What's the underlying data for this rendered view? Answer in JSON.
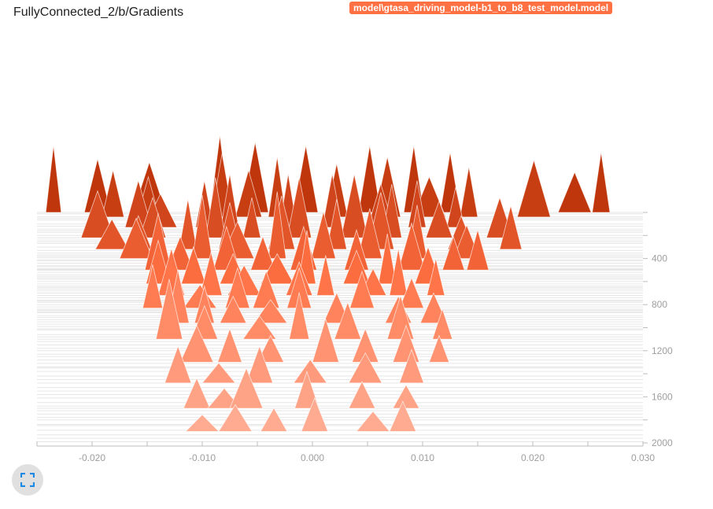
{
  "header": {
    "title": "FullyConnected_2/b/Gradients",
    "run": "model\\gtasa_driving_model-b1_to_b8_test_model.model"
  },
  "controls": {
    "expand_icon": "fullscreen-expand-icon"
  },
  "colors": {
    "run": "#ff7043",
    "back": "#bf360c",
    "front": "#ffab91"
  },
  "chart_data": {
    "type": "histogram",
    "mode": "offset",
    "title": "FullyConnected_2/b/Gradients",
    "xlim": [
      -0.025,
      0.03
    ],
    "x_ticks": [
      -0.02,
      -0.01,
      0.0,
      0.01,
      0.02,
      0.03
    ],
    "x_tick_labels": [
      "-0.020",
      "-0.010",
      "0.000",
      "0.010",
      "0.020",
      "0.030"
    ],
    "ylim": [
      0,
      2000
    ],
    "y_ticks": [
      400,
      800,
      1200,
      1600,
      2000
    ],
    "y_tick_labels": [
      "400",
      "800",
      "1200",
      "1600",
      "2000"
    ],
    "step_lines": [
      0,
      12,
      38,
      52,
      66,
      101,
      120,
      145,
      160,
      175,
      200,
      220,
      240,
      255,
      270,
      300,
      330,
      352,
      368,
      380,
      392,
      410,
      420,
      440,
      462,
      470,
      486,
      495,
      502,
      520,
      540,
      555,
      568,
      580,
      600,
      620,
      640,
      652,
      665,
      680,
      700,
      720,
      740,
      760,
      770,
      780,
      800,
      820,
      840,
      850,
      862,
      870,
      895,
      910,
      930,
      950,
      970,
      990,
      1010,
      1020,
      1060,
      1080,
      1100,
      1120,
      1150,
      1180,
      1200,
      1230,
      1250,
      1280,
      1310,
      1340,
      1350,
      1380,
      1420,
      1450,
      1480,
      1520,
      1550,
      1580,
      1610,
      1650,
      1680,
      1700,
      1720,
      1750,
      1780,
      1800,
      1840,
      1850,
      1890,
      1930,
      1960,
      1990
    ],
    "histograms": [
      {
        "step": 0,
        "peaks": [
          [
            -0.0235,
            0.0007,
            1
          ],
          [
            -0.0195,
            0.0012,
            0.8
          ],
          [
            -0.0148,
            0.0015,
            0.75
          ],
          [
            -0.0084,
            0.0009,
            1.15
          ],
          [
            -0.0052,
            0.0012,
            1.05
          ],
          [
            -0.0006,
            0.0011,
            1
          ],
          [
            0.0052,
            0.001,
            1
          ],
          [
            0.0092,
            0.0009,
            1
          ],
          [
            0.0125,
            0.0009,
            0.9
          ],
          [
            0.0238,
            0.0015,
            0.6
          ],
          [
            0.0262,
            0.0008,
            0.9
          ]
        ]
      },
      {
        "step": 40,
        "peaks": [
          [
            -0.0181,
            0.001,
            0.7
          ],
          [
            -0.0149,
            0.001,
            0.6
          ],
          [
            -0.0082,
            0.001,
            0.95
          ],
          [
            -0.0058,
            0.0012,
            0.7
          ],
          [
            -0.0032,
            0.0008,
            0.9
          ],
          [
            0.0022,
            0.001,
            0.8
          ],
          [
            0.0068,
            0.0012,
            0.9
          ],
          [
            0.0106,
            0.0015,
            0.6
          ],
          [
            0.0142,
            0.0008,
            0.75
          ],
          [
            0.0201,
            0.0015,
            0.85
          ]
        ]
      },
      {
        "step": 130,
        "peaks": [
          [
            -0.0158,
            0.0012,
            0.7
          ],
          [
            -0.0138,
            0.0015,
            0.5
          ],
          [
            -0.0098,
            0.0008,
            0.7
          ],
          [
            -0.0075,
            0.0008,
            0.8
          ],
          [
            -0.0022,
            0.0008,
            0.8
          ],
          [
            0.0018,
            0.0009,
            0.8
          ],
          [
            0.0062,
            0.0012,
            0.65
          ],
          [
            0.0095,
            0.0008,
            0.7
          ],
          [
            0.013,
            0.0008,
            0.6
          ]
        ]
      },
      {
        "step": 220,
        "peaks": [
          [
            -0.0195,
            0.0015,
            0.7
          ],
          [
            -0.0145,
            0.0012,
            0.6
          ],
          [
            -0.0088,
            0.0009,
            0.9
          ],
          [
            -0.0055,
            0.0008,
            0.6
          ],
          [
            -0.0012,
            0.0011,
            0.9
          ],
          [
            0.0038,
            0.0012,
            0.95
          ],
          [
            0.0072,
            0.0009,
            0.8
          ],
          [
            0.0115,
            0.0012,
            0.55
          ],
          [
            0.017,
            0.0012,
            0.6
          ]
        ]
      },
      {
        "step": 320,
        "peaks": [
          [
            -0.0182,
            0.0015,
            0.45
          ],
          [
            -0.0158,
            0.0012,
            0.5
          ],
          [
            -0.0113,
            0.0008,
            0.75
          ],
          [
            -0.0075,
            0.001,
            0.7
          ],
          [
            -0.0028,
            0.0012,
            0.8
          ],
          [
            0.0022,
            0.0009,
            0.75
          ],
          [
            0.0062,
            0.0012,
            0.85
          ],
          [
            0.0135,
            0.0012,
            0.5
          ],
          [
            0.018,
            0.001,
            0.65
          ]
        ]
      },
      {
        "step": 400,
        "peaks": [
          [
            -0.016,
            0.0015,
            0.6
          ],
          [
            -0.01,
            0.0009,
            0.95
          ],
          [
            -0.0068,
            0.0015,
            0.55
          ],
          [
            -0.0032,
            0.0008,
            1.0
          ],
          [
            0.001,
            0.0011,
            0.7
          ],
          [
            0.0052,
            0.0011,
            0.75
          ],
          [
            0.0095,
            0.0009,
            0.8
          ],
          [
            0.014,
            0.0012,
            0.5
          ]
        ]
      },
      {
        "step": 500,
        "peaks": [
          [
            -0.014,
            0.0012,
            0.85
          ],
          [
            -0.012,
            0.0012,
            0.5
          ],
          [
            -0.0078,
            0.0012,
            0.65
          ],
          [
            -0.0045,
            0.0011,
            0.5
          ],
          [
            -0.0008,
            0.0012,
            0.65
          ],
          [
            0.004,
            0.0011,
            0.6
          ],
          [
            0.009,
            0.0012,
            0.7
          ],
          [
            0.0128,
            0.001,
            0.5
          ],
          [
            0.015,
            0.001,
            0.6
          ]
        ]
      },
      {
        "step": 620,
        "peaks": [
          [
            -0.014,
            0.0011,
            0.65
          ],
          [
            -0.0108,
            0.0011,
            0.55
          ],
          [
            -0.0072,
            0.0012,
            0.45
          ],
          [
            -0.0032,
            0.0015,
            0.45
          ],
          [
            -0.0005,
            0.0008,
            0.8
          ],
          [
            0.004,
            0.0012,
            0.5
          ],
          [
            0.0068,
            0.0008,
            0.75
          ],
          [
            0.0105,
            0.0012,
            0.55
          ]
        ]
      },
      {
        "step": 720,
        "peaks": [
          [
            -0.0128,
            0.0012,
            0.7
          ],
          [
            -0.0092,
            0.001,
            0.65
          ],
          [
            -0.0062,
            0.0015,
            0.45
          ],
          [
            -0.0012,
            0.0012,
            0.5
          ],
          [
            0.0012,
            0.0008,
            0.6
          ],
          [
            0.0055,
            0.0012,
            0.4
          ],
          [
            0.0078,
            0.0008,
            0.7
          ],
          [
            0.0112,
            0.0008,
            0.55
          ]
        ]
      },
      {
        "step": 830,
        "peaks": [
          [
            -0.0145,
            0.0009,
            0.65
          ],
          [
            -0.0102,
            0.0015,
            0.35
          ],
          [
            -0.0068,
            0.0011,
            0.6
          ],
          [
            -0.0042,
            0.0012,
            0.55
          ],
          [
            -0.0012,
            0.0011,
            0.6
          ],
          [
            0.0045,
            0.0011,
            0.55
          ],
          [
            0.009,
            0.0011,
            0.45
          ]
        ]
      },
      {
        "step": 960,
        "peaks": [
          [
            -0.0122,
            0.001,
            0.8
          ],
          [
            -0.0098,
            0.0009,
            0.55
          ],
          [
            -0.0072,
            0.0012,
            0.4
          ],
          [
            -0.0038,
            0.0015,
            0.35
          ],
          [
            0.0022,
            0.0012,
            0.45
          ],
          [
            0.0078,
            0.0012,
            0.4
          ],
          [
            0.011,
            0.0012,
            0.45
          ]
        ]
      },
      {
        "step": 1100,
        "peaks": [
          [
            -0.013,
            0.0012,
            0.9
          ],
          [
            -0.0098,
            0.0012,
            0.5
          ],
          [
            -0.0048,
            0.0015,
            0.35
          ],
          [
            -0.0012,
            0.0009,
            0.7
          ],
          [
            0.0032,
            0.0012,
            0.55
          ],
          [
            0.008,
            0.0012,
            0.65
          ],
          [
            0.0118,
            0.0009,
            0.45
          ]
        ]
      },
      {
        "step": 1300,
        "peaks": [
          [
            -0.0105,
            0.0015,
            0.55
          ],
          [
            -0.0075,
            0.0011,
            0.5
          ],
          [
            -0.0038,
            0.0012,
            0.4
          ],
          [
            0.0012,
            0.0012,
            0.65
          ],
          [
            0.0048,
            0.0012,
            0.5
          ],
          [
            0.0085,
            0.0012,
            0.55
          ],
          [
            0.0115,
            0.0009,
            0.4
          ]
        ]
      },
      {
        "step": 1480,
        "peaks": [
          [
            -0.0122,
            0.0012,
            0.55
          ],
          [
            -0.0085,
            0.0015,
            0.3
          ],
          [
            -0.0048,
            0.0012,
            0.55
          ],
          [
            -0.0002,
            0.0015,
            0.35
          ],
          [
            0.0048,
            0.0015,
            0.45
          ],
          [
            0.009,
            0.0011,
            0.5
          ]
        ]
      },
      {
        "step": 1700,
        "peaks": [
          [
            -0.0105,
            0.0012,
            0.45
          ],
          [
            -0.008,
            0.0015,
            0.3
          ],
          [
            -0.006,
            0.0015,
            0.6
          ],
          [
            -0.0005,
            0.0011,
            0.55
          ],
          [
            0.0045,
            0.0012,
            0.4
          ],
          [
            0.0085,
            0.0012,
            0.35
          ]
        ]
      },
      {
        "step": 1900,
        "peaks": [
          [
            -0.01,
            0.0015,
            0.25
          ],
          [
            -0.007,
            0.0015,
            0.4
          ],
          [
            -0.0035,
            0.0012,
            0.35
          ],
          [
            0.0002,
            0.0012,
            0.5
          ],
          [
            0.0055,
            0.0015,
            0.3
          ],
          [
            0.0082,
            0.0012,
            0.45
          ]
        ]
      }
    ]
  }
}
